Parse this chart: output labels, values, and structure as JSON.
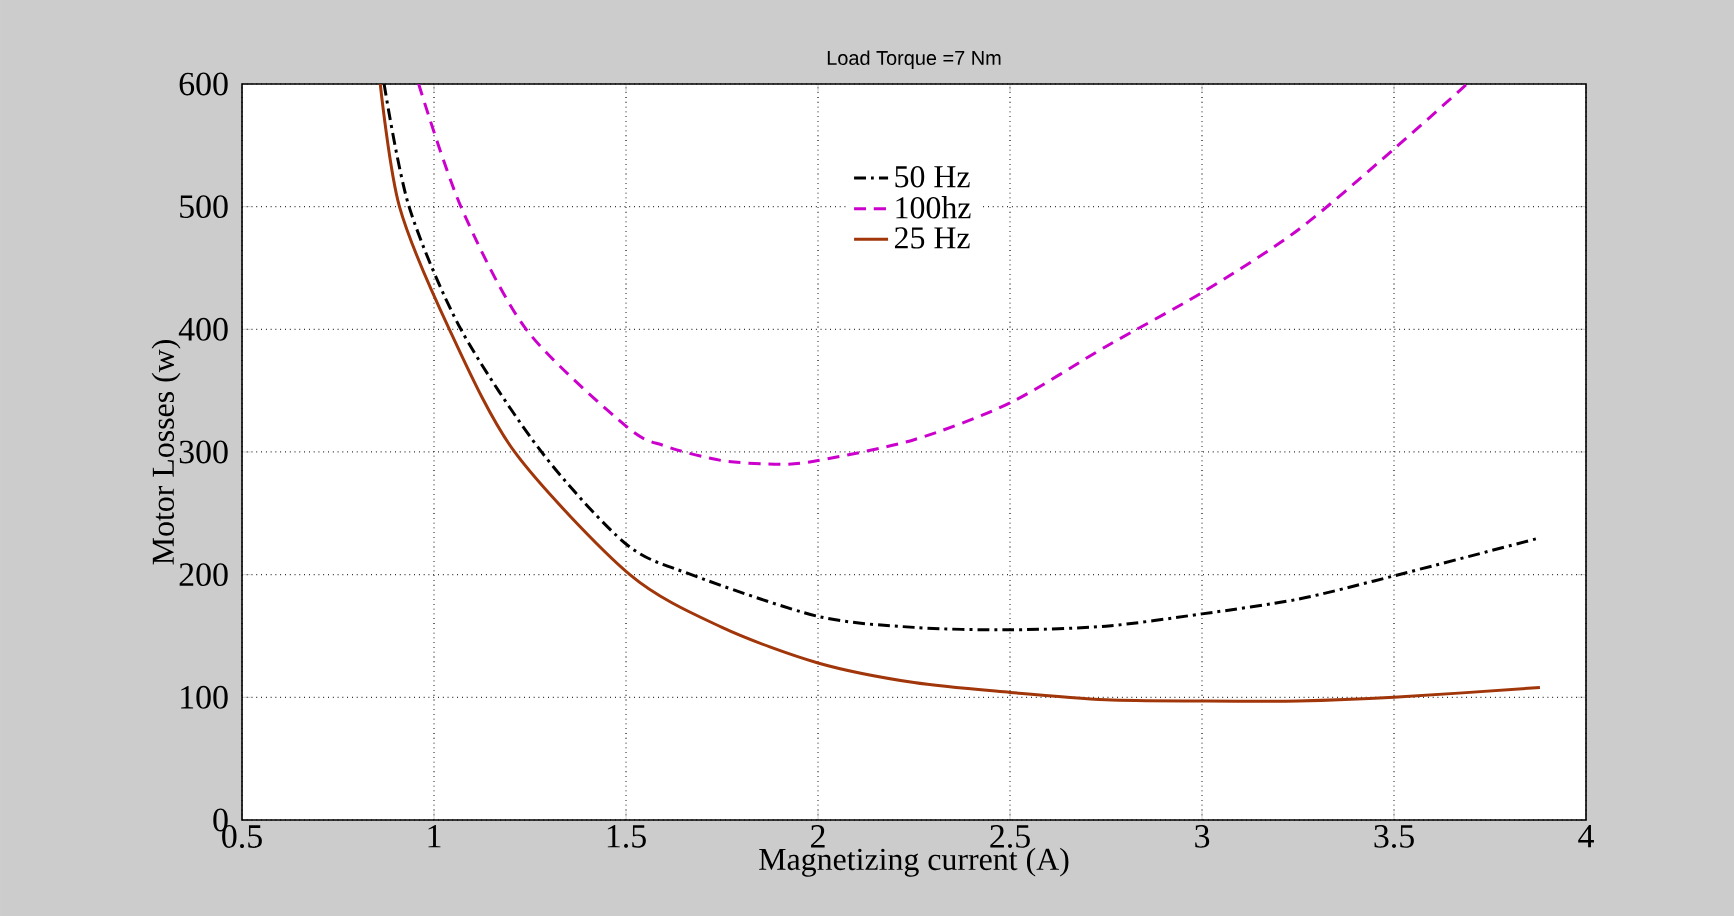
{
  "chart_data": {
    "type": "line",
    "title": "Load Torque =7 Nm",
    "xlabel": "Magnetizing current (A)",
    "ylabel": "Motor Losses (w)",
    "xlim": [
      0.5,
      4
    ],
    "ylim": [
      0,
      600
    ],
    "xticks": [
      0.5,
      1,
      1.5,
      2,
      2.5,
      3,
      3.5,
      4
    ],
    "yticks": [
      0,
      100,
      200,
      300,
      400,
      500,
      600
    ],
    "grid": true,
    "legend": "top",
    "series": [
      {
        "name": "50 Hz",
        "color": "#000000",
        "line_style": "dashdot",
        "x": [
          0.87,
          0.935,
          1.07,
          1.28,
          1.5,
          1.67,
          2,
          2.25,
          2.5,
          2.75,
          3,
          3.25,
          3.5,
          3.88
        ],
        "values": [
          600,
          500,
          400,
          300,
          225,
          200,
          166,
          157,
          155,
          158,
          168,
          180,
          199,
          230
        ]
      },
      {
        "name": "100hz",
        "color": "#cc00cc",
        "line_style": "dashed",
        "x": [
          0.96,
          1.07,
          1.24,
          1.5,
          1.6,
          1.75,
          1.9,
          2,
          2.25,
          2.5,
          2.75,
          3,
          3.25,
          3.5,
          3.69
        ],
        "values": [
          600,
          500,
          400,
          321,
          305,
          293,
          290,
          293,
          310,
          340,
          386,
          430,
          481,
          547,
          600
        ]
      },
      {
        "name": "25 Hz",
        "color": "#a0360a",
        "line_style": "solid",
        "x": [
          0.86,
          0.91,
          1.04,
          1.21,
          1.51,
          1.75,
          2,
          2.25,
          2.5,
          2.75,
          3,
          3.25,
          3.5,
          3.88
        ],
        "values": [
          600,
          500,
          400,
          300,
          200,
          157,
          128,
          112,
          104,
          98,
          97,
          97,
          100,
          108
        ]
      }
    ]
  }
}
